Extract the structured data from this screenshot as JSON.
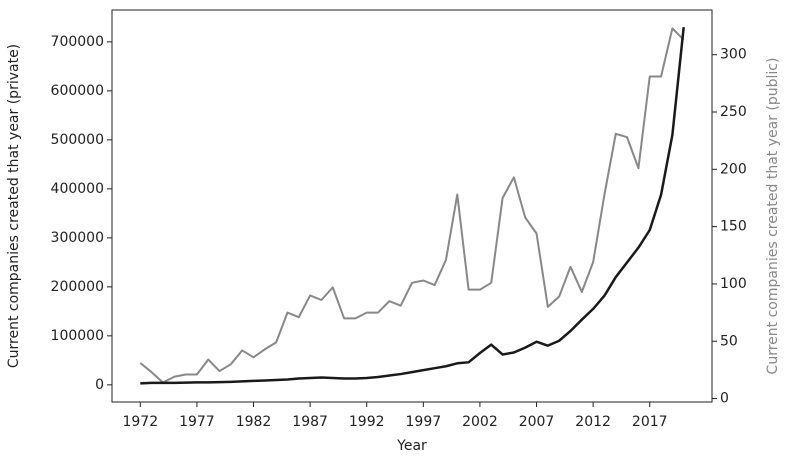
{
  "chart_data": {
    "type": "line",
    "x_label": "Year",
    "y_label": "Current companies created that year (private)",
    "y2_label": "Current companies created that year (public)",
    "x": [
      1972,
      1973,
      1974,
      1975,
      1976,
      1977,
      1978,
      1979,
      1980,
      1981,
      1982,
      1983,
      1984,
      1985,
      1986,
      1987,
      1988,
      1989,
      1990,
      1991,
      1992,
      1993,
      1994,
      1995,
      1996,
      1997,
      1998,
      1999,
      2000,
      2001,
      2002,
      2003,
      2004,
      2005,
      2006,
      2007,
      2008,
      2009,
      2010,
      2011,
      2012,
      2013,
      2014,
      2015,
      2016,
      2017,
      2018,
      2019,
      2020
    ],
    "series": [
      {
        "color": "#1a1a1a",
        "values": [
          3000,
          4000,
          4000,
          4000,
          4500,
          5000,
          5000,
          5500,
          6000,
          7000,
          8000,
          9000,
          10000,
          11000,
          13000,
          14000,
          15000,
          14000,
          13000,
          13000,
          14000,
          16000,
          19000,
          22000,
          26000,
          30000,
          34000,
          38000,
          44000,
          46000,
          65000,
          82000,
          62000,
          66000,
          76000,
          88000,
          80000,
          90000,
          110000,
          133000,
          155000,
          182000,
          220000,
          250000,
          280000,
          316000,
          388000,
          510000,
          730000
        ]
      },
      {
        "color": "#888888",
        "axis": "y2",
        "values": [
          31,
          23,
          14,
          19,
          21,
          21,
          34,
          24,
          30,
          42,
          36,
          43,
          49,
          75,
          71,
          90,
          86,
          97,
          70,
          70,
          75,
          75,
          85,
          81,
          101,
          103,
          99,
          121,
          178,
          95,
          95,
          101,
          175,
          193,
          158,
          144,
          80,
          89,
          115,
          93,
          119,
          178,
          231,
          228,
          201,
          281,
          281,
          323,
          313
        ]
      }
    ],
    "xlim": [
      1969.5,
      2022.5
    ],
    "xticks": [
      1972,
      1977,
      1982,
      1987,
      1992,
      1997,
      2002,
      2007,
      2012,
      2017
    ],
    "ylim": [
      -35000,
      765000
    ],
    "yticks": [
      0,
      100000,
      200000,
      300000,
      400000,
      500000,
      600000,
      700000
    ],
    "y2lim": [
      -3,
      339
    ],
    "y2ticks": [
      0,
      50,
      100,
      150,
      200,
      250,
      300
    ],
    "y2_label_color": "#888888"
  }
}
